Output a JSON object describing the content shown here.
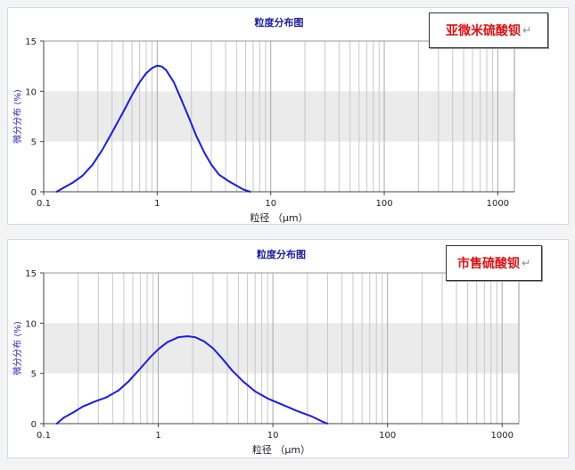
{
  "chart_data": [
    {
      "type": "line",
      "title": "粒度分布图",
      "xlabel": "粒径 （μm）",
      "ylabel": "微分分布 (%)",
      "xscale": "log",
      "xlim": [
        0.1,
        1400
      ],
      "ylim": [
        0,
        15
      ],
      "x_ticks": [
        "0.1",
        "1",
        "10",
        "100",
        "1000"
      ],
      "y_ticks": [
        "0",
        "5",
        "10",
        "15"
      ],
      "grid": "vertical log gridlines",
      "shaded_band": [
        5,
        10
      ],
      "series_color": "#1a1aee",
      "annotation": "亚微米硫酸钡",
      "annotation_mark": "↵",
      "x": [
        0.13,
        0.15,
        0.18,
        0.22,
        0.27,
        0.33,
        0.4,
        0.5,
        0.6,
        0.7,
        0.8,
        0.9,
        1.0,
        1.1,
        1.2,
        1.4,
        1.6,
        1.9,
        2.2,
        2.6,
        3.0,
        3.5,
        4.2,
        5.0,
        5.8,
        6.6
      ],
      "y": [
        0.0,
        0.4,
        0.9,
        1.6,
        2.7,
        4.2,
        5.9,
        7.9,
        9.6,
        10.9,
        11.8,
        12.3,
        12.55,
        12.45,
        12.1,
        10.9,
        9.4,
        7.4,
        5.6,
        3.9,
        2.7,
        1.7,
        1.1,
        0.6,
        0.2,
        0.0
      ]
    },
    {
      "type": "line",
      "title": "粒度分布图",
      "xlabel": "粒径 （μm）",
      "ylabel": "微分分布 (%)",
      "xscale": "log",
      "xlim": [
        0.1,
        1400
      ],
      "ylim": [
        0,
        15
      ],
      "x_ticks": [
        "0.1",
        "1",
        "10",
        "100",
        "1000"
      ],
      "y_ticks": [
        "0",
        "5",
        "10",
        "15"
      ],
      "grid": "vertical log gridlines",
      "shaded_band": [
        5,
        10
      ],
      "series_color": "#1a1aee",
      "annotation": "市售硫酸钡",
      "annotation_mark": "↵",
      "x": [
        0.13,
        0.15,
        0.18,
        0.22,
        0.28,
        0.35,
        0.45,
        0.55,
        0.7,
        0.85,
        1.0,
        1.2,
        1.5,
        1.8,
        2.1,
        2.5,
        3.0,
        3.6,
        4.4,
        5.5,
        7.0,
        9.0,
        12.0,
        16.0,
        22.0,
        27.0,
        30.0
      ],
      "y": [
        0.0,
        0.6,
        1.1,
        1.7,
        2.2,
        2.6,
        3.3,
        4.2,
        5.5,
        6.6,
        7.4,
        8.1,
        8.6,
        8.7,
        8.6,
        8.2,
        7.5,
        6.5,
        5.3,
        4.2,
        3.2,
        2.5,
        1.9,
        1.3,
        0.7,
        0.2,
        0.0
      ]
    }
  ]
}
